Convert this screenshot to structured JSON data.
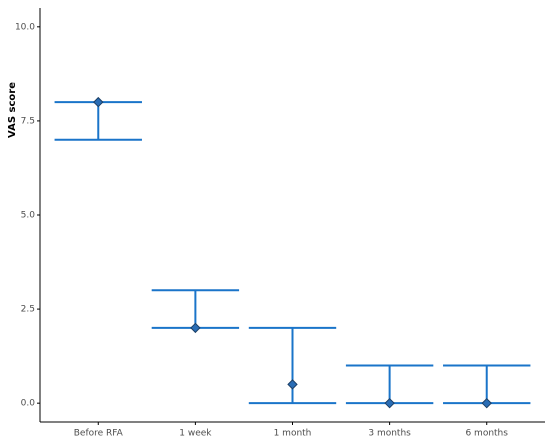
{
  "chart_data": {
    "type": "errorbar",
    "y_label": "VAS score",
    "categories": [
      "Before RFA",
      "1 week",
      "1 month",
      "3 months",
      "6 months"
    ],
    "values": [
      8,
      2,
      0.5,
      0,
      0
    ],
    "lower": [
      7,
      2,
      0,
      0,
      0
    ],
    "upper": [
      8,
      3,
      2,
      1,
      1
    ],
    "color": "#1a74c9",
    "marker_color": "#2a6db5",
    "ylim": [
      -0.5,
      10.5
    ],
    "yticks": [
      {
        "value": 0,
        "label": "0.0"
      },
      {
        "value": 2.5,
        "label": "2.5"
      },
      {
        "value": 5,
        "label": "5.0"
      },
      {
        "value": 7.5,
        "label": "7.5"
      },
      {
        "value": 10,
        "label": "10.0"
      }
    ]
  }
}
